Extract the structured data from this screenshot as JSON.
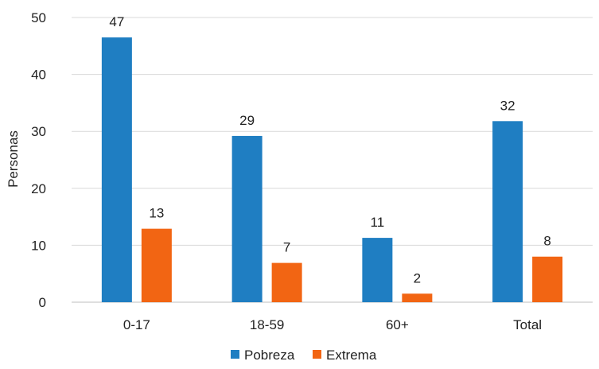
{
  "chart_data": {
    "type": "bar",
    "title": "",
    "ylabel": "Personas",
    "xlabel": "",
    "categories": [
      "0-17",
      "18-59",
      "60+",
      "Total"
    ],
    "series": [
      {
        "name": "Pobreza",
        "values": [
          47,
          29,
          11,
          32
        ],
        "plotted_values": [
          46.5,
          29.2,
          11.3,
          31.8
        ],
        "color": "#1f7ec2"
      },
      {
        "name": "Extrema",
        "values": [
          13,
          7,
          2,
          8
        ],
        "plotted_values": [
          12.9,
          6.9,
          1.5,
          8.0
        ],
        "color": "#f26513"
      }
    ],
    "ylim": [
      0,
      50
    ],
    "yticks": [
      "0",
      "10",
      "20",
      "30",
      "40",
      "50"
    ],
    "grid": true,
    "legend": "bottom",
    "data_labels": true
  }
}
